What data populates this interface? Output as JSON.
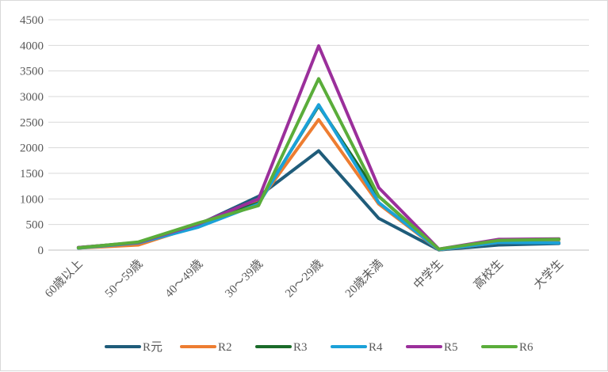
{
  "chart_data": {
    "type": "line",
    "categories": [
      "60歳以上",
      "50～59歳",
      "40～49歳",
      "30～39歳",
      "20～29歳",
      "20歳未満",
      "中学生",
      "高校生",
      "大学生"
    ],
    "ylim": [
      0,
      4500
    ],
    "yticks": [
      0,
      500,
      1000,
      1500,
      2000,
      2500,
      3000,
      3500,
      4000,
      4500
    ],
    "grid": true,
    "legend_position": "bottom",
    "series": [
      {
        "name": "R元",
        "color": "#1f5c7a",
        "values": [
          40,
          130,
          500,
          1050,
          1940,
          620,
          5,
          100,
          130
        ]
      },
      {
        "name": "R2",
        "color": "#ed7d31",
        "values": [
          40,
          100,
          480,
          940,
          2550,
          900,
          5,
          150,
          150
        ]
      },
      {
        "name": "R3",
        "color": "#1a6b2a",
        "values": [
          50,
          150,
          520,
          920,
          2820,
          1050,
          10,
          200,
          210
        ]
      },
      {
        "name": "R4",
        "color": "#1ba1d8",
        "values": [
          40,
          140,
          450,
          900,
          2840,
          930,
          10,
          150,
          140
        ]
      },
      {
        "name": "R5",
        "color": "#9b2f9b",
        "values": [
          50,
          150,
          510,
          1000,
          3990,
          1220,
          20,
          210,
          220
        ]
      },
      {
        "name": "R6",
        "color": "#5aad3a",
        "values": [
          45,
          160,
          530,
          870,
          3350,
          1050,
          20,
          190,
          210
        ]
      }
    ]
  }
}
